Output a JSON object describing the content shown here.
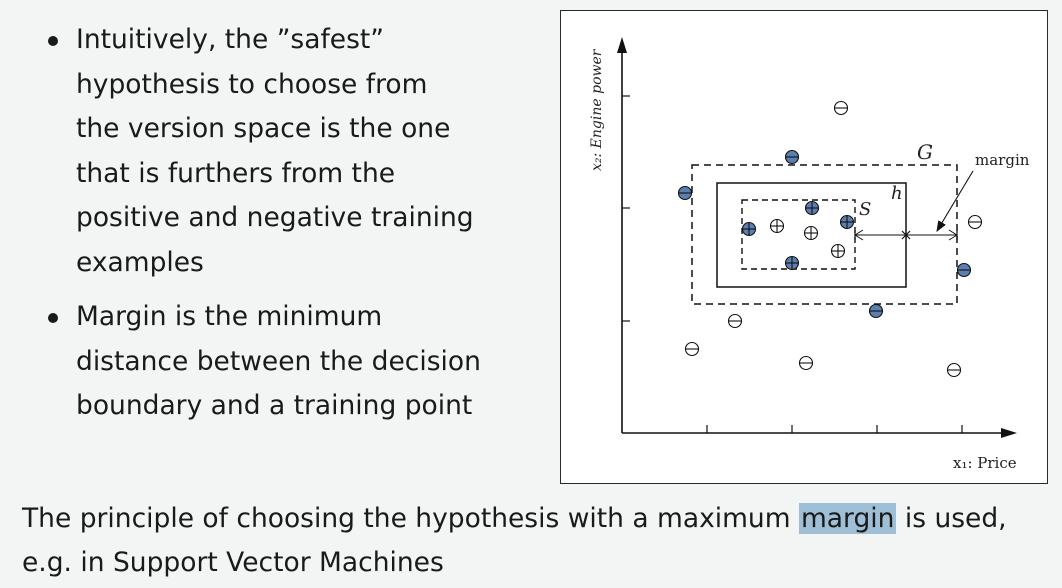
{
  "bullets": [
    {
      "lines": [
        "Intuitively, the ”safest”",
        "hypothesis to choose from",
        "the version space is the one",
        "that is furthers from the",
        "positive and negative training",
        "examples"
      ]
    },
    {
      "lines": [
        "Margin is the minimum",
        "distance between the decision",
        "boundary and a training point"
      ]
    }
  ],
  "figure": {
    "y_axis_label": "x₂: Engine power",
    "x_axis_label": "x₁: Price",
    "label_G": "G",
    "label_h": "h",
    "label_S": "S",
    "label_margin": "margin",
    "positive_symbol": "⊕",
    "negative_symbol": "⊖"
  },
  "footer": {
    "before": "The principle of choosing the hypothesis with a maximum ",
    "highlight": "margin",
    "after": " is used,",
    "line2": "e.g. in Support Vector Machines"
  },
  "colors": {
    "filled_point": "#5b7fb0",
    "highlight": "#9fbfd6",
    "background": "#f3f5f4"
  }
}
